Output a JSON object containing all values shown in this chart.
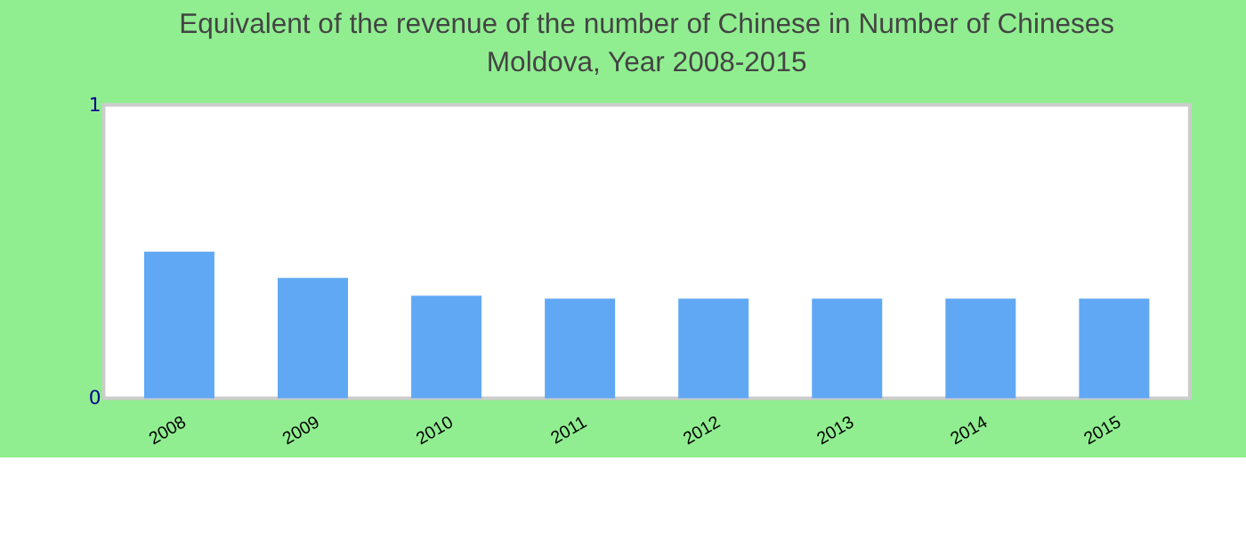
{
  "chart_data": {
    "type": "bar",
    "title": "Equivalent of the revenue of the number of Chinese  in Number of Chineses",
    "subtitle": "Moldova, Year 2008-2015",
    "categories": [
      "2008",
      "2009",
      "2010",
      "2011",
      "2012",
      "2013",
      "2014",
      "2015"
    ],
    "values": [
      0.5,
      0.41,
      0.35,
      0.34,
      0.34,
      0.34,
      0.34,
      0.34
    ],
    "color": "#61a8f4",
    "ylim": [
      0,
      1
    ],
    "yticks": [
      0,
      1
    ],
    "grid": false
  }
}
